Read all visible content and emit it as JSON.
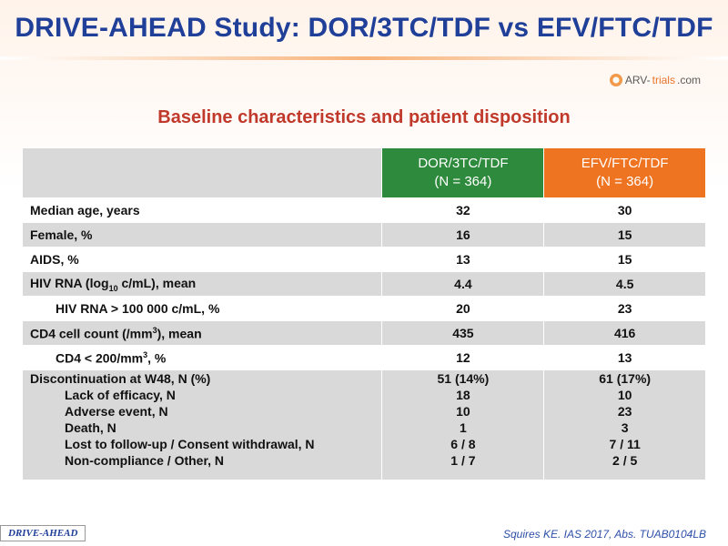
{
  "title": "DRIVE-AHEAD Study: DOR/3TC/TDF vs EFV/FTC/TDF",
  "logo": {
    "prefix": "ARV-",
    "accent": "trials",
    "suffix": ".com"
  },
  "subtitle": "Baseline characteristics and patient disposition",
  "columns": [
    {
      "name": "DOR/3TC/TDF",
      "n": "(N = 364)",
      "color": "#2e8a3c"
    },
    {
      "name": "EFV/FTC/TDF",
      "n": "(N = 364)",
      "color": "#ef7422"
    }
  ],
  "rows": [
    {
      "label": "Median age, years",
      "dor": "32",
      "efv": "30"
    },
    {
      "label": "Female, %",
      "dor": "16",
      "efv": "15"
    },
    {
      "label": "AIDS, %",
      "dor": "13",
      "efv": "15"
    },
    {
      "label_pre": "HIV RNA (log",
      "label_sub": "10",
      "label_post": " c/mL), mean",
      "dor": "4.4",
      "efv": "4.5"
    },
    {
      "label": "HIV RNA > 100 000 c/mL, %",
      "dor": "20",
      "efv": "23"
    },
    {
      "label_pre": "CD4 cell count (/mm",
      "label_sup": "3",
      "label_post": "), mean",
      "dor": "435",
      "efv": "416"
    },
    {
      "label_pre": "CD4 < 200/mm",
      "label_sup": "3",
      "label_post": ", %",
      "dor": "12",
      "efv": "13"
    }
  ],
  "discontinuation": {
    "label": "Discontinuation at W48, N (%)",
    "dor": "51 (14%)",
    "efv": "61 (17%)",
    "items": [
      {
        "label": "Lack of efficacy, N",
        "dor": "18",
        "efv": "10"
      },
      {
        "label": "Adverse event, N",
        "dor": "10",
        "efv": "23"
      },
      {
        "label": "Death, N",
        "dor": "1",
        "efv": "3"
      },
      {
        "label": "Lost to follow-up / Consent withdrawal, N",
        "dor": "6 / 8",
        "efv": "7 / 11"
      },
      {
        "label": "Non-compliance / Other, N",
        "dor": "1 / 7",
        "efv": "2 / 5"
      }
    ]
  },
  "footer_label": "DRIVE-AHEAD",
  "citation": "Squires KE. IAS  2017, Abs. TUAB0104LB"
}
